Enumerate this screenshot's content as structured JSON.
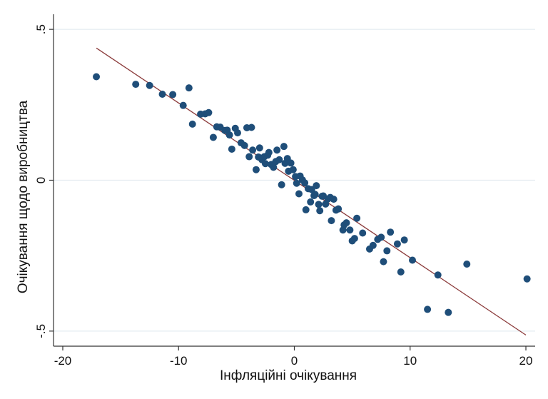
{
  "chart_data": {
    "type": "scatter",
    "title": "",
    "xlabel": "Інфляційні очікування",
    "ylabel": "Очікування щодо виробництва",
    "xlim": [
      -20.8,
      20.8
    ],
    "ylim": [
      -0.55,
      0.55
    ],
    "x_ticks": [
      -20,
      -10,
      0,
      10,
      20
    ],
    "x_tick_labels": [
      "-20",
      "-10",
      "0",
      "10",
      "20"
    ],
    "y_ticks": [
      -0.5,
      0,
      0.5
    ],
    "y_tick_labels": [
      "-.5",
      "0",
      ".5"
    ],
    "grid": "horizontal",
    "colors": {
      "points": "#1f4e79",
      "fit_line": "#8b3a3a",
      "grid": "#e4ecf0",
      "axis": "#333333"
    },
    "fit_line": {
      "x": [
        -17.1,
        20.0
      ],
      "y": [
        0.438,
        -0.513
      ]
    },
    "points": [
      [
        -17.1,
        0.343
      ],
      [
        -13.7,
        0.318
      ],
      [
        -12.5,
        0.314
      ],
      [
        -11.4,
        0.285
      ],
      [
        -10.5,
        0.284
      ],
      [
        -9.6,
        0.248
      ],
      [
        -9.1,
        0.306
      ],
      [
        -8.8,
        0.186
      ],
      [
        -8.1,
        0.219
      ],
      [
        -7.7,
        0.22
      ],
      [
        -7.4,
        0.224
      ],
      [
        -7.0,
        0.142
      ],
      [
        -6.7,
        0.177
      ],
      [
        -6.4,
        0.176
      ],
      [
        -6.0,
        0.165
      ],
      [
        -5.8,
        0.166
      ],
      [
        -5.6,
        0.15
      ],
      [
        -5.4,
        0.103
      ],
      [
        -5.1,
        0.172
      ],
      [
        -4.9,
        0.157
      ],
      [
        -4.6,
        0.124
      ],
      [
        -4.3,
        0.115
      ],
      [
        -4.1,
        0.174
      ],
      [
        -3.9,
        0.078
      ],
      [
        -3.7,
        0.175
      ],
      [
        -3.6,
        0.1
      ],
      [
        -3.3,
        0.035
      ],
      [
        -3.1,
        0.077
      ],
      [
        -3.0,
        0.107
      ],
      [
        -2.8,
        0.068
      ],
      [
        -2.6,
        0.078
      ],
      [
        -2.5,
        0.055
      ],
      [
        -2.3,
        0.083
      ],
      [
        -2.2,
        0.092
      ],
      [
        -2.0,
        0.052
      ],
      [
        -1.8,
        0.043
      ],
      [
        -1.6,
        0.062
      ],
      [
        -1.5,
        0.1
      ],
      [
        -1.3,
        0.068
      ],
      [
        -1.1,
        -0.015
      ],
      [
        -0.9,
        0.112
      ],
      [
        -0.8,
        0.056
      ],
      [
        -0.6,
        0.072
      ],
      [
        -0.5,
        0.03
      ],
      [
        -0.3,
        0.057
      ],
      [
        -0.1,
        0.035
      ],
      [
        0.1,
        0.012
      ],
      [
        0.2,
        -0.01
      ],
      [
        0.4,
        -0.045
      ],
      [
        0.5,
        0.014
      ],
      [
        0.7,
        0.001
      ],
      [
        0.9,
        -0.009
      ],
      [
        1.0,
        -0.098
      ],
      [
        1.2,
        -0.028
      ],
      [
        1.4,
        -0.072
      ],
      [
        1.5,
        -0.031
      ],
      [
        1.7,
        -0.051
      ],
      [
        1.8,
        -0.047
      ],
      [
        1.9,
        -0.018
      ],
      [
        2.1,
        -0.08
      ],
      [
        2.2,
        -0.101
      ],
      [
        2.4,
        -0.053
      ],
      [
        2.5,
        -0.052
      ],
      [
        2.7,
        -0.079
      ],
      [
        2.9,
        -0.062
      ],
      [
        3.1,
        -0.057
      ],
      [
        3.2,
        -0.134
      ],
      [
        3.4,
        -0.063
      ],
      [
        3.6,
        -0.099
      ],
      [
        3.8,
        -0.095
      ],
      [
        4.2,
        -0.165
      ],
      [
        4.3,
        -0.148
      ],
      [
        4.5,
        -0.141
      ],
      [
        4.8,
        -0.165
      ],
      [
        5.0,
        -0.201
      ],
      [
        5.2,
        -0.193
      ],
      [
        5.4,
        -0.126
      ],
      [
        5.9,
        -0.175
      ],
      [
        6.5,
        -0.228
      ],
      [
        6.8,
        -0.216
      ],
      [
        7.2,
        -0.196
      ],
      [
        7.5,
        -0.189
      ],
      [
        7.7,
        -0.27
      ],
      [
        8.0,
        -0.234
      ],
      [
        8.3,
        -0.172
      ],
      [
        8.9,
        -0.211
      ],
      [
        9.2,
        -0.304
      ],
      [
        9.5,
        -0.198
      ],
      [
        10.2,
        -0.265
      ],
      [
        11.5,
        -0.428
      ],
      [
        12.4,
        -0.314
      ],
      [
        13.3,
        -0.438
      ],
      [
        14.9,
        -0.278
      ],
      [
        20.1,
        -0.327
      ]
    ]
  }
}
